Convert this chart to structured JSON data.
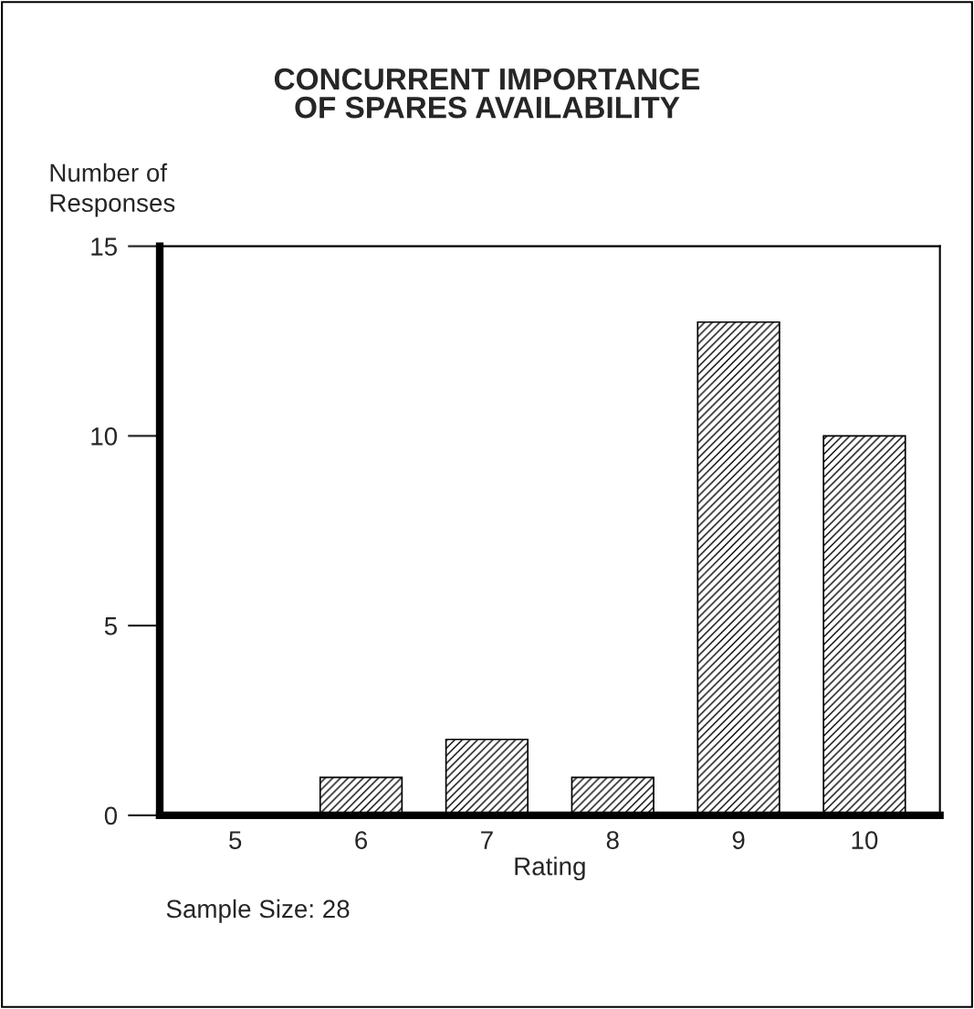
{
  "chart_data": {
    "type": "bar",
    "title": "CONCURRENT IMPORTANCE\nOF SPARES AVAILABILITY",
    "ylabel": "Number of\nResponses",
    "xlabel": "Rating",
    "categories": [
      "5",
      "6",
      "7",
      "8",
      "9",
      "10"
    ],
    "values": [
      0,
      1,
      2,
      1,
      13,
      10
    ],
    "color": "#000000",
    "ylim": [
      0,
      15
    ],
    "yticks": [
      0,
      5,
      10,
      15
    ],
    "annotations": [
      "Sample Size: 28"
    ]
  }
}
